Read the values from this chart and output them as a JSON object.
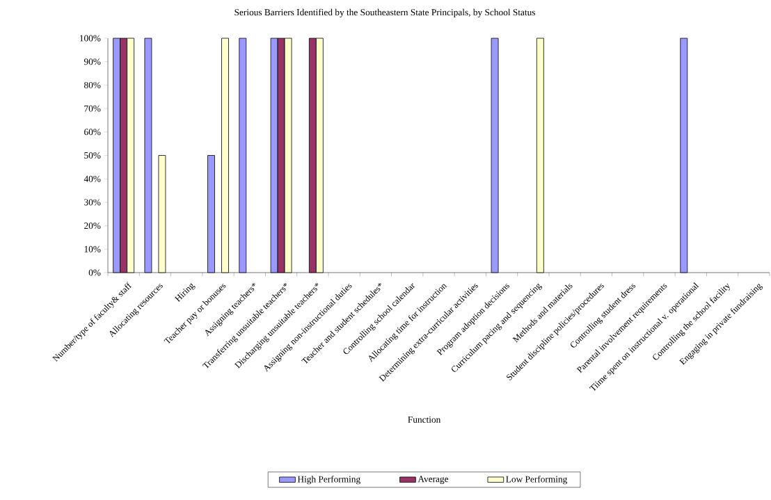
{
  "chart_data": {
    "type": "bar",
    "title": "Serious Barriers Identified by the Southeastern State Principals, by School Status",
    "xlabel": "Function",
    "categories": [
      "Number/type of faculty& staff",
      "Allocating resources",
      "Hiring",
      "Teacher pay or bonuses",
      "Assigning teachers*",
      "Transferring unsuitable teachers*",
      "Discharging unsuitable teachers*",
      "Assigning non-instructional duties",
      "Teacher and student schedules*",
      "Controlling school calendar",
      "Allocating time for instruction",
      "Determining extra-curricular activities",
      "Program adoption decisions",
      "Curriculum pacing and sequencing",
      "Methods and materials",
      "Student discipline policies/procedures",
      "Controlling student dress",
      "Parental involvement requirements",
      "Tiime spent on instructional v. operational",
      "Controlling the school facility",
      "Engaging in private fundraising"
    ],
    "series": [
      {
        "name": "High Performing",
        "color": "#9999ff",
        "values": [
          100,
          100,
          null,
          50,
          100,
          100,
          null,
          null,
          null,
          null,
          null,
          null,
          100,
          null,
          null,
          null,
          null,
          null,
          100,
          null,
          null
        ]
      },
      {
        "name": "Average",
        "color": "#993366",
        "values": [
          100,
          null,
          null,
          null,
          null,
          100,
          100,
          null,
          null,
          null,
          null,
          null,
          null,
          null,
          null,
          null,
          null,
          null,
          null,
          null,
          null
        ]
      },
      {
        "name": "Low Performing",
        "color": "#ffffcc",
        "values": [
          100,
          50,
          null,
          100,
          null,
          100,
          100,
          null,
          null,
          null,
          null,
          null,
          null,
          100,
          null,
          null,
          null,
          null,
          null,
          null,
          null
        ]
      }
    ],
    "ylim": [
      0,
      100
    ],
    "yticks": [
      {
        "value": 0,
        "label": "0%"
      },
      {
        "value": 10,
        "label": "10%"
      },
      {
        "value": 20,
        "label": "20%"
      },
      {
        "value": 30,
        "label": "30%"
      },
      {
        "value": 40,
        "label": "40%"
      },
      {
        "value": 50,
        "label": "50%"
      },
      {
        "value": 60,
        "label": "60%"
      },
      {
        "value": 70,
        "label": "70%"
      },
      {
        "value": 80,
        "label": "80%"
      },
      {
        "value": 90,
        "label": "90%"
      },
      {
        "value": 100,
        "label": "100%"
      }
    ],
    "legend": "bottom"
  }
}
